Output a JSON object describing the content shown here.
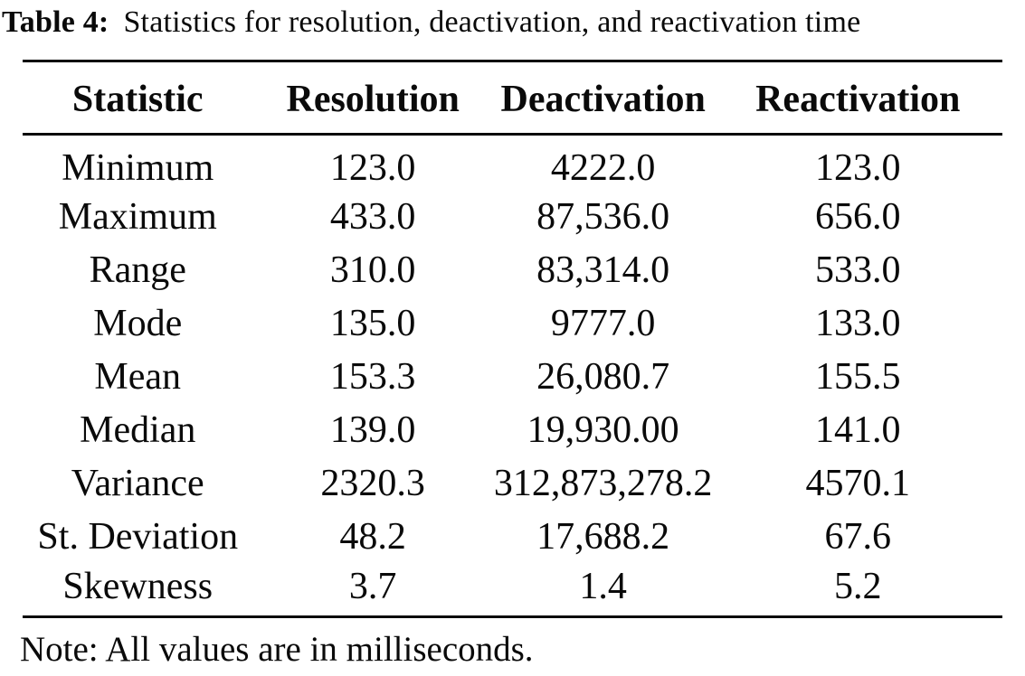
{
  "caption": {
    "label": "Table 4:",
    "text": "Statistics for resolution, deactivation, and reactivation time"
  },
  "table": {
    "columns": [
      "Statistic",
      "Resolution",
      "Deactivation",
      "Reactivation"
    ],
    "rows": [
      {
        "statistic": "Minimum",
        "resolution": "123.0",
        "deactivation": "4222.0",
        "reactivation": "123.0"
      },
      {
        "statistic": "Maximum",
        "resolution": "433.0",
        "deactivation": "87,536.0",
        "reactivation": "656.0"
      },
      {
        "statistic": "Range",
        "resolution": "310.0",
        "deactivation": "83,314.0",
        "reactivation": "533.0"
      },
      {
        "statistic": "Mode",
        "resolution": "135.0",
        "deactivation": "9777.0",
        "reactivation": "133.0"
      },
      {
        "statistic": "Mean",
        "resolution": "153.3",
        "deactivation": "26,080.7",
        "reactivation": "155.5"
      },
      {
        "statistic": "Median",
        "resolution": "139.0",
        "deactivation": "19,930.00",
        "reactivation": "141.0"
      },
      {
        "statistic": "Variance",
        "resolution": "2320.3",
        "deactivation": "312,873,278.2",
        "reactivation": "4570.1"
      },
      {
        "statistic": "St. Deviation",
        "resolution": "48.2",
        "deactivation": "17,688.2",
        "reactivation": "67.6"
      },
      {
        "statistic": "Skewness",
        "resolution": "3.7",
        "deactivation": "1.4",
        "reactivation": "5.2"
      }
    ],
    "note": "Note: All values are in milliseconds."
  },
  "colors": {
    "text": "#0a0a0a",
    "background": "#ffffff",
    "rule": "#0a0a0a"
  }
}
